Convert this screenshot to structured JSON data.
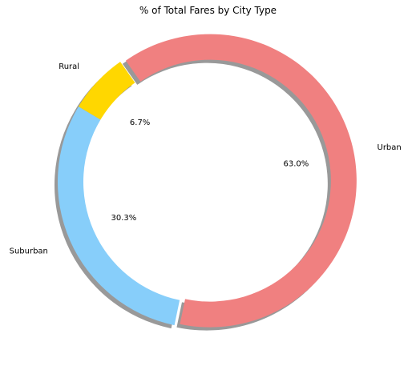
{
  "chart_data": {
    "type": "pie",
    "title": "% of Total Fares by City Type",
    "slices": [
      {
        "label": "Rural",
        "value": 6.7,
        "pct_label": "6.7%",
        "color": "#FFD700"
      },
      {
        "label": "Suburban",
        "value": 30.3,
        "pct_label": "30.3%",
        "color": "#87CEFA"
      },
      {
        "label": "Urban",
        "value": 63.0,
        "pct_label": "63.0%",
        "color": "#F08080"
      }
    ],
    "explode": "Urban",
    "shadow": true,
    "legend": "none"
  }
}
